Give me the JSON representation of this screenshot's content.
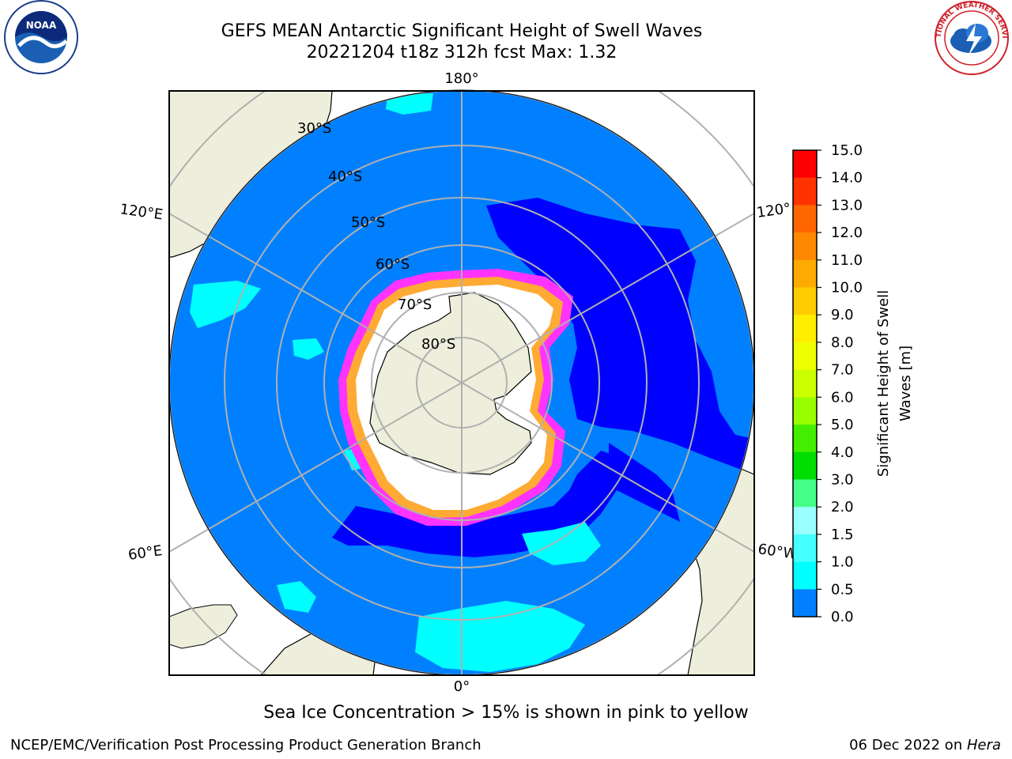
{
  "header": {
    "title_line1": "GEFS MEAN Antarctic Significant Height of Swell Waves",
    "title_line2": "20221204 t18z 312h fcst   Max: 1.32"
  },
  "logos": {
    "left": "noaa-logo",
    "left_text": "NOAA",
    "right": "nws-logo",
    "right_text": "NATIONAL WEATHER SERVICE"
  },
  "map": {
    "projection": "south-polar-stereographic",
    "longitude_labels": {
      "top": "180°",
      "upper_left": "120°E",
      "upper_right": "120°",
      "lower_left": "60°E",
      "lower_right": "60°W",
      "bottom": "0°"
    },
    "latitude_labels": [
      "30°S",
      "40°S",
      "50°S",
      "60°S",
      "70°S",
      "80°S"
    ],
    "colors": {
      "ocean_base": "#0080ff",
      "low_swell": "#0000ff",
      "moderate_swell": "#00ffff",
      "land": "#eeeedc",
      "sea_ice": "#ffffff",
      "ice_edge_pink": "#ff33ff",
      "ice_edge_orange": "#ffaa33",
      "grid": "#b0b0b0"
    }
  },
  "colorbar": {
    "label_line1": "Significant Height of Swell",
    "label_line2": "Waves [m]",
    "ticks": [
      "15.0",
      "14.0",
      "13.0",
      "12.0",
      "11.0",
      "10.0",
      "9.0",
      "8.0",
      "7.0",
      "6.0",
      "5.0",
      "4.0",
      "3.0",
      "2.0",
      "1.5",
      "1.0",
      "0.5",
      "0.0"
    ],
    "colors": [
      "#ff0000",
      "#ff3300",
      "#ff6600",
      "#ff8800",
      "#ffaa00",
      "#ffcc00",
      "#ffee00",
      "#eeff00",
      "#ccff00",
      "#99ff00",
      "#44ee00",
      "#00dd00",
      "#44ff88",
      "#99ffff",
      "#44ffff",
      "#00ffff",
      "#0080ff",
      "#0000ff"
    ]
  },
  "note": "Sea Ice Concentration > 15% is shown in pink to yellow",
  "footer": {
    "left": "NCEP/EMC/Verification Post Processing Product Generation Branch",
    "right_date": "06 Dec 2022 on ",
    "right_machine": "Hera"
  }
}
